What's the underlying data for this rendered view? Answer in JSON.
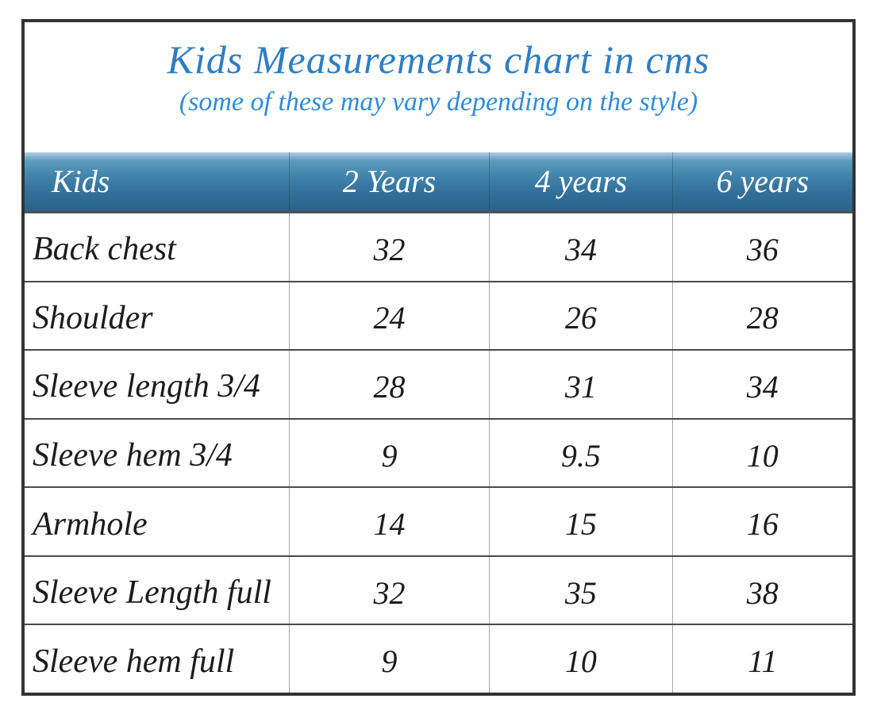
{
  "title": "Kids Measurements chart in cms",
  "subtitle": "(some of these may vary depending on the style)",
  "table": {
    "header": [
      "Kids",
      "2 Years",
      "4 years",
      "6 years"
    ],
    "rows": [
      {
        "label": "Back chest",
        "values": [
          "32",
          "34",
          "36"
        ]
      },
      {
        "label": "Shoulder",
        "values": [
          "24",
          "26",
          "28"
        ]
      },
      {
        "label": "Sleeve length 3/4",
        "values": [
          "28",
          "31",
          "34"
        ]
      },
      {
        "label": "Sleeve hem 3/4",
        "values": [
          "9",
          "9.5",
          "10"
        ]
      },
      {
        "label": "Armhole",
        "values": [
          "14",
          "15",
          "16"
        ]
      },
      {
        "label": "Sleeve Length full",
        "values": [
          "32",
          "35",
          "38"
        ]
      },
      {
        "label": "Sleeve hem full",
        "values": [
          "9",
          "10",
          "11"
        ]
      }
    ]
  },
  "colors": {
    "title_blue": "#2d7dc2",
    "subtitle_blue": "#318bd8",
    "header_gradient_top": "#b2d0e1",
    "header_gradient_mid": "#4386ad",
    "header_gradient_bottom": "#2e6387",
    "header_text": "#ffffff",
    "body_text": "#1c1c1c",
    "row_divider": "#4a4a4a",
    "column_divider": "#9fa8ad",
    "outer_border": "#333333"
  },
  "chart_data": {
    "type": "table",
    "title": "Kids Measurements chart in cms",
    "subtitle": "(some of these may vary depending on the style)",
    "units": "cm",
    "columns": [
      "Kids",
      "2 Years",
      "4 years",
      "6 years"
    ],
    "rows": [
      [
        "Back chest",
        32,
        34,
        36
      ],
      [
        "Shoulder",
        24,
        26,
        28
      ],
      [
        "Sleeve length 3/4",
        28,
        31,
        34
      ],
      [
        "Sleeve hem 3/4",
        9,
        9.5,
        10
      ],
      [
        "Armhole",
        14,
        15,
        16
      ],
      [
        "Sleeve Length full",
        32,
        35,
        38
      ],
      [
        "Sleeve hem full",
        9,
        10,
        11
      ]
    ]
  }
}
